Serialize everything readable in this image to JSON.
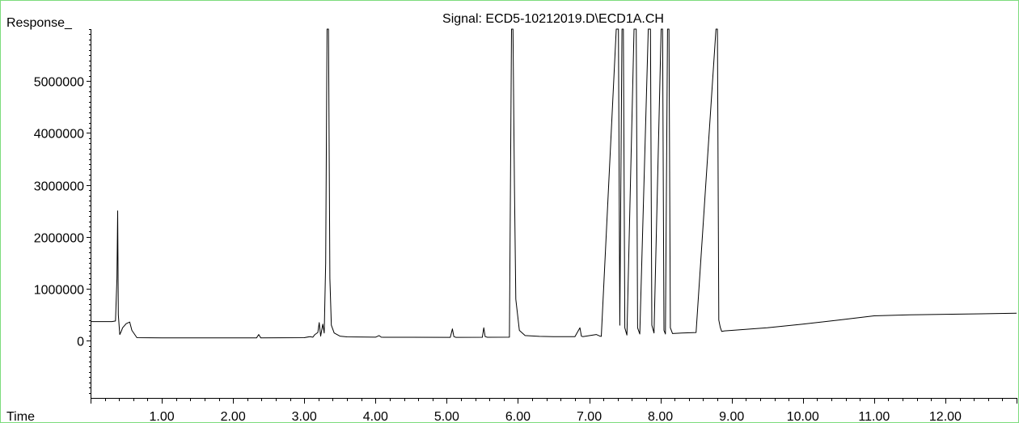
{
  "chart_data": {
    "type": "line",
    "title": "Signal: ECD5-10212019.D\\ECD1A.CH",
    "ylabel": "Response_",
    "xlabel": "Time",
    "xlim": [
      0.0,
      13.0
    ],
    "ylim": [
      -1100000,
      6000000
    ],
    "x_ticks": [
      1.0,
      2.0,
      3.0,
      4.0,
      5.0,
      6.0,
      7.0,
      8.0,
      9.0,
      10.0,
      11.0,
      12.0
    ],
    "x_tick_labels": [
      "1.00",
      "2.00",
      "3.00",
      "4.00",
      "5.00",
      "6.00",
      "7.00",
      "8.00",
      "9.00",
      "10.00",
      "11.00",
      "12.00"
    ],
    "y_ticks": [
      0,
      1000000,
      2000000,
      3000000,
      4000000,
      5000000
    ],
    "y_tick_labels": [
      "0",
      "1000000",
      "2000000",
      "3000000",
      "4000000",
      "5000000"
    ],
    "grid": false,
    "series": [
      {
        "x": [
          0.0,
          0.3,
          0.35,
          0.37,
          0.38,
          0.39,
          0.41,
          0.43,
          0.45,
          0.5,
          0.55,
          0.58,
          0.65,
          1.0,
          2.0,
          2.33,
          2.36,
          2.39,
          3.0,
          3.08,
          3.12,
          3.15,
          3.19,
          3.21,
          3.23,
          3.26,
          3.28,
          3.3,
          3.32,
          3.34,
          3.36,
          3.38,
          3.42,
          3.5,
          3.6,
          4.0,
          4.05,
          4.08,
          4.11,
          5.05,
          5.08,
          5.1,
          5.13,
          5.5,
          5.52,
          5.54,
          5.57,
          5.88,
          5.91,
          5.93,
          5.95,
          5.97,
          6.02,
          6.1,
          6.3,
          6.5,
          6.8,
          6.87,
          6.89,
          6.91,
          7.1,
          7.15,
          7.17,
          7.38,
          7.41,
          7.43,
          7.46,
          7.48,
          7.5,
          7.53,
          7.63,
          7.66,
          7.68,
          7.71,
          7.83,
          7.86,
          7.88,
          7.91,
          8.01,
          8.03,
          8.05,
          8.07,
          8.1,
          8.12,
          8.14,
          8.17,
          8.3,
          8.5,
          8.78,
          8.8,
          8.82,
          8.84,
          8.86,
          8.9,
          9.0,
          9.5,
          10.0,
          10.5,
          11.0,
          11.5,
          12.0,
          12.5,
          13.0
        ],
        "values": [
          370000,
          370000,
          380000,
          1200000,
          2500000,
          500000,
          120000,
          180000,
          250000,
          330000,
          360000,
          200000,
          60000,
          55000,
          55000,
          55000,
          120000,
          55000,
          60000,
          80000,
          70000,
          120000,
          160000,
          350000,
          90000,
          320000,
          150000,
          1500000,
          6000000,
          6000000,
          1200000,
          300000,
          150000,
          90000,
          75000,
          70000,
          100000,
          70000,
          68000,
          66000,
          230000,
          80000,
          66000,
          68000,
          250000,
          80000,
          68000,
          70000,
          6000000,
          6000000,
          3000000,
          800000,
          200000,
          100000,
          85000,
          80000,
          80000,
          250000,
          90000,
          80000,
          120000,
          90000,
          85000,
          6000000,
          6000000,
          300000,
          6000000,
          6000000,
          250000,
          110000,
          6000000,
          6000000,
          250000,
          130000,
          6000000,
          6000000,
          300000,
          150000,
          6000000,
          6000000,
          200000,
          130000,
          6000000,
          6000000,
          250000,
          140000,
          150000,
          160000,
          6000000,
          6000000,
          400000,
          260000,
          180000,
          190000,
          200000,
          250000,
          320000,
          400000,
          480000,
          500000,
          510000,
          520000,
          530000
        ]
      }
    ]
  }
}
